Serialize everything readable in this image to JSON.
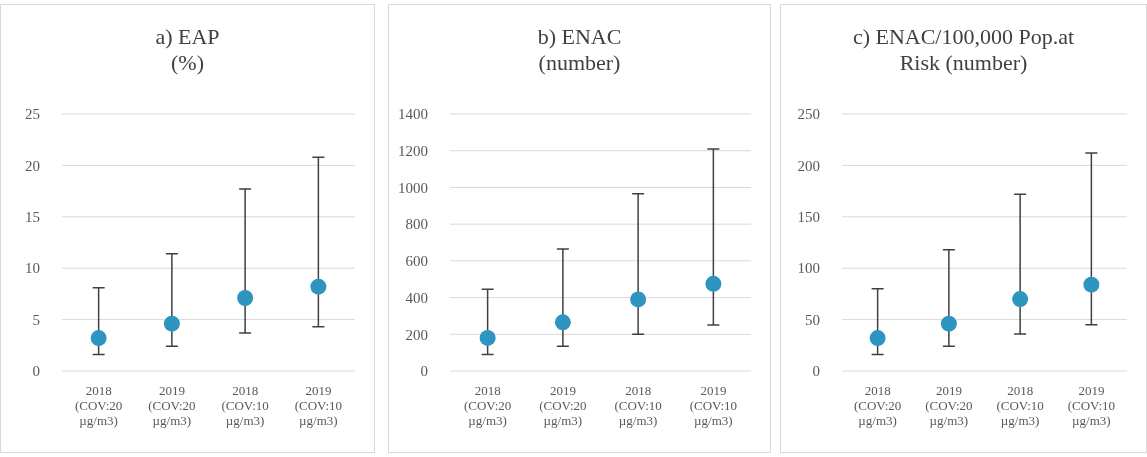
{
  "chart_data": [
    {
      "type": "scatter",
      "title": "a) EAP\n(%)",
      "categories": [
        "2018 (COV:20 µg/m3)",
        "2019 (COV:20 µg/m3)",
        "2018 (COV:10 µg/m3)",
        "2019 (COV:10 µg/m3)"
      ],
      "series": [
        {
          "color": "#2e95c0",
          "values": [
            3.2,
            4.6,
            7.1,
            8.2
          ],
          "errors": [
            [
              1.6,
              8.1
            ],
            [
              2.4,
              11.4
            ],
            [
              3.7,
              17.7
            ],
            [
              4.3,
              20.8
            ]
          ]
        }
      ],
      "ylim": [
        0,
        25
      ],
      "yticks": [
        0,
        5,
        10,
        15,
        20,
        25
      ],
      "grid": "y",
      "marker": "circle"
    },
    {
      "type": "scatter",
      "title": "b) ENAC\n(number)",
      "categories": [
        "2018 (COV:20 µg/m3)",
        "2019 (COV:20 µg/m3)",
        "2018 (COV:10 µg/m3)",
        "2019 (COV:10 µg/m3)"
      ],
      "series": [
        {
          "color": "#2e95c0",
          "values": [
            180,
            265,
            390,
            475
          ],
          "errors": [
            [
              90,
              445
            ],
            [
              135,
              665
            ],
            [
              200,
              965
            ],
            [
              250,
              1210
            ]
          ]
        }
      ],
      "ylim": [
        0,
        1400
      ],
      "yticks": [
        0,
        200,
        400,
        600,
        800,
        1000,
        1200,
        1400
      ],
      "grid": "y",
      "marker": "circle"
    },
    {
      "type": "scatter",
      "title": "c) ENAC/100,000 Pop.at\nRisk (number)",
      "categories": [
        "2018 (COV:20 µg/m3)",
        "2019 (COV:20 µg/m3)",
        "2018 (COV:10 µg/m3)",
        "2019 (COV:10 µg/m3)"
      ],
      "series": [
        {
          "color": "#2e95c0",
          "values": [
            32,
            46,
            70,
            84
          ],
          "errors": [
            [
              16,
              80
            ],
            [
              24,
              118
            ],
            [
              36,
              172
            ],
            [
              45,
              212
            ]
          ]
        }
      ],
      "ylim": [
        0,
        250
      ],
      "yticks": [
        0,
        50,
        100,
        150,
        200,
        250
      ],
      "grid": "y",
      "marker": "circle"
    }
  ]
}
